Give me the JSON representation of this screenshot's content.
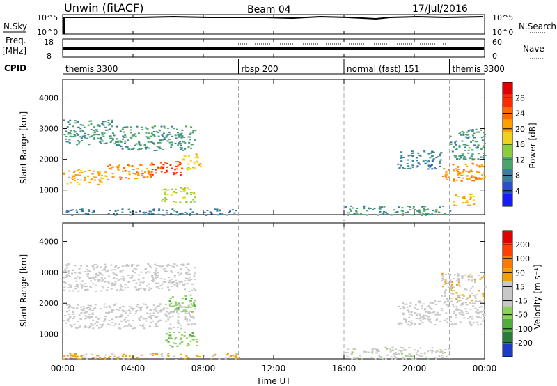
{
  "header": {
    "station": "Unwin (fitACF)",
    "beam": "Beam 04",
    "date": "17/Jul/2016"
  },
  "left_labels": {
    "nsky": "N.Sky",
    "freq": "Freq.",
    "freq_unit": "[MHz]",
    "cpid": "CPID"
  },
  "right_labels": {
    "nsearch": "N.Search",
    "nave": "Nave"
  },
  "cpid_segments": [
    {
      "start": 0,
      "end": 10,
      "label": "themis 3300"
    },
    {
      "start": 10,
      "end": 16,
      "label": "rbsp 200"
    },
    {
      "start": 16,
      "end": 22,
      "label": "normal (fast) 151"
    },
    {
      "start": 22,
      "end": 24,
      "label": "themis 3300"
    }
  ],
  "nsky_axis": {
    "ticks": [
      "10^5",
      "10^0"
    ],
    "right_ticks": [
      "10^5",
      "10^0"
    ]
  },
  "freq_axis": {
    "ticks": [
      "18",
      "8"
    ],
    "right_ticks": [
      "60",
      "0"
    ]
  },
  "x_axis": {
    "label": "Time UT",
    "ticks": [
      "00:00",
      "04:00",
      "08:00",
      "12:00",
      "16:00",
      "20:00",
      "00:00"
    ]
  },
  "power_panel": {
    "ylabel": "Slant Range [km]",
    "yticks": [
      "4000",
      "3000",
      "2000",
      "1000"
    ],
    "colorbar_label": "Power [dB]",
    "colorbar_ticks": [
      "28",
      "24",
      "20",
      "16",
      "12",
      "8",
      "4"
    ]
  },
  "velocity_panel": {
    "ylabel": "Slant Range [km]",
    "yticks": [
      "4000",
      "3000",
      "2000",
      "1000"
    ],
    "colorbar_label": "Velocity [m s⁻¹]",
    "colorbar_ticks": [
      "200",
      "100",
      "50",
      "15",
      "-15",
      "-50",
      "-100",
      "-200"
    ]
  },
  "colors": {
    "power_scale": [
      "#1a1aff",
      "#2a4fc8",
      "#3c7f9a",
      "#4aa56a",
      "#8ccd3c",
      "#f0d21e",
      "#ffa000",
      "#ff6a00",
      "#ff2a00",
      "#e00000"
    ],
    "velocity_scale": [
      "#1c3cc8",
      "#2c7a3c",
      "#4fae3c",
      "#8cd25a",
      "#c8c8c8",
      "#c8c8c8",
      "#f0a000",
      "#ff7800",
      "#ff4000",
      "#e00000"
    ]
  },
  "chart_data": [
    {
      "type": "heatmap",
      "title": "Power [dB]",
      "xlabel": "Time UT",
      "ylabel": "Slant Range [km]",
      "xlim": [
        0,
        24
      ],
      "ylim": [
        200,
        4600
      ],
      "clim": [
        0,
        32
      ],
      "colorbar_ticks": [
        4,
        8,
        12,
        16,
        20,
        24,
        28
      ],
      "regions": [
        {
          "t": [
            0.0,
            2.5
          ],
          "range": [
            1200,
            1700
          ],
          "value": 20
        },
        {
          "t": [
            2.5,
            5.0
          ],
          "range": [
            1350,
            1850
          ],
          "value": 22
        },
        {
          "t": [
            5.0,
            6.8
          ],
          "range": [
            1500,
            1950
          ],
          "value": 26
        },
        {
          "t": [
            6.8,
            7.8
          ],
          "range": [
            1650,
            2200
          ],
          "value": 18
        },
        {
          "t": [
            0.0,
            3.0
          ],
          "range": [
            2500,
            3300
          ],
          "value": 10
        },
        {
          "t": [
            3.0,
            7.5
          ],
          "range": [
            2300,
            3100
          ],
          "value": 10
        },
        {
          "t": [
            5.5,
            7.5
          ],
          "range": [
            600,
            1100
          ],
          "value": 16
        },
        {
          "t": [
            0.0,
            10.0
          ],
          "range": [
            200,
            400
          ],
          "value": 8
        },
        {
          "t": [
            16.0,
            22.0
          ],
          "range": [
            200,
            500
          ],
          "value": 10
        },
        {
          "t": [
            19.0,
            21.5
          ],
          "range": [
            1700,
            2300
          ],
          "value": 8
        },
        {
          "t": [
            21.5,
            24.0
          ],
          "range": [
            1300,
            1900
          ],
          "value": 22
        },
        {
          "t": [
            22.0,
            24.0
          ],
          "range": [
            2000,
            3000
          ],
          "value": 10
        },
        {
          "t": [
            22.2,
            23.4
          ],
          "range": [
            500,
            900
          ],
          "value": 20
        }
      ]
    },
    {
      "type": "heatmap",
      "title": "Velocity [m s⁻¹]",
      "xlabel": "Time UT",
      "ylabel": "Slant Range [km]",
      "xlim": [
        0,
        24
      ],
      "ylim": [
        200,
        4600
      ],
      "clim": [
        -250,
        250
      ],
      "colorbar_ticks": [
        200,
        100,
        50,
        15,
        -15,
        -50,
        -100,
        -200
      ],
      "regions": [
        {
          "t": [
            0.0,
            7.5
          ],
          "range": [
            1200,
            2000
          ],
          "value": 0
        },
        {
          "t": [
            0.0,
            7.5
          ],
          "range": [
            2400,
            3300
          ],
          "value": 10
        },
        {
          "t": [
            5.8,
            7.6
          ],
          "range": [
            600,
            1100
          ],
          "value": -80
        },
        {
          "t": [
            6.0,
            7.5
          ],
          "range": [
            1700,
            2300
          ],
          "value": -80
        },
        {
          "t": [
            0.0,
            10.0
          ],
          "range": [
            200,
            400
          ],
          "value": 60
        },
        {
          "t": [
            16.0,
            22.0
          ],
          "range": [
            200,
            600
          ],
          "value": -30
        },
        {
          "t": [
            19.0,
            24.0
          ],
          "range": [
            1300,
            2100
          ],
          "value": 0
        },
        {
          "t": [
            21.5,
            24.0
          ],
          "range": [
            2100,
            3000
          ],
          "value": 40
        }
      ]
    }
  ]
}
